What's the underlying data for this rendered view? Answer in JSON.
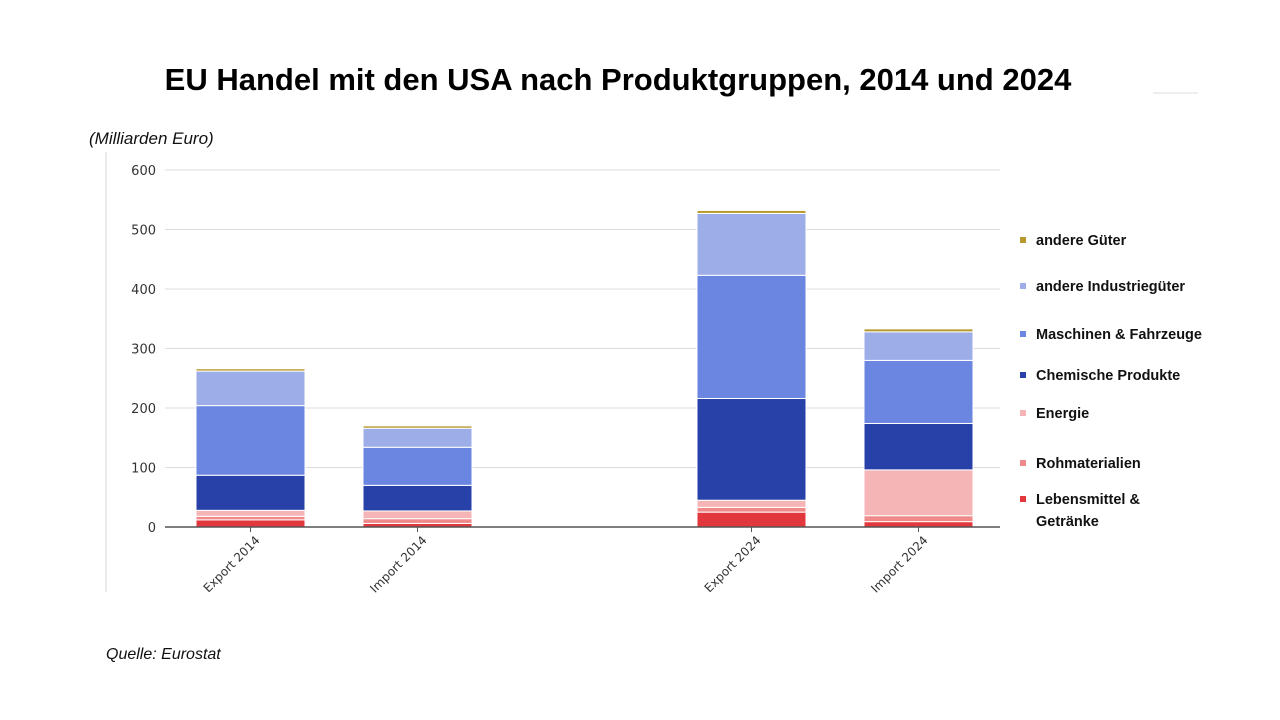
{
  "title": "EU Handel mit den USA nach Produktgruppen, 2014 und 2024",
  "unit_label": "(Milliarden Euro)",
  "source": "Quelle: Eurostat",
  "chart_data": {
    "type": "bar",
    "stacked": true,
    "categories": [
      "Export 2014",
      "Import 2014",
      "Export 2024",
      "Import 2024"
    ],
    "ylim": [
      0,
      600
    ],
    "yticks": [
      "0",
      "100",
      "200",
      "300",
      "400",
      "500",
      "600"
    ],
    "grid": true,
    "legend_position": "right",
    "series": [
      {
        "name": "Lebensmittel & Getränke",
        "color": "#e2373c",
        "values": [
          12,
          6,
          25,
          9
        ]
      },
      {
        "name": "Rohmaterialien",
        "color": "#f08989",
        "values": [
          6,
          8,
          8,
          10
        ]
      },
      {
        "name": "Energie",
        "color": "#f5b5b7",
        "values": [
          10,
          13,
          12,
          77
        ]
      },
      {
        "name": "Chemische Produkte",
        "color": "#2841a8",
        "values": [
          59,
          43,
          171,
          78
        ]
      },
      {
        "name": "Maschinen & Fahrzeuge",
        "color": "#6b86e0",
        "values": [
          117,
          64,
          207,
          106
        ]
      },
      {
        "name": "andere Industriegüter",
        "color": "#9dade8",
        "values": [
          58,
          32,
          104,
          48
        ]
      },
      {
        "name": "andere Güter",
        "color": "#b89a2c",
        "values": [
          4,
          4,
          5,
          5
        ]
      }
    ],
    "legend_order": [
      "andere Güter",
      "andere Industriegüter",
      "Maschinen & Fahrzeuge",
      "Chemische Produkte",
      "Energie",
      "Rohmaterialien",
      "Lebensmittel & Getränke"
    ]
  }
}
